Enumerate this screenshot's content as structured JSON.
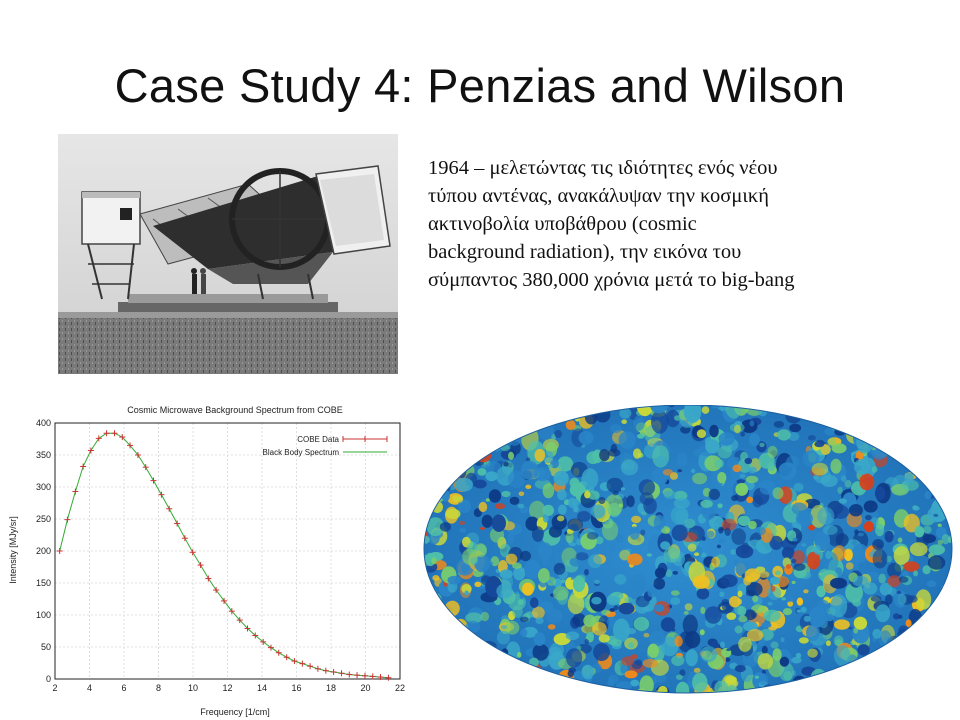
{
  "slide": {
    "title": "Case Study 4: Penzias and Wilson",
    "body_lines": [
      "1964 – μελετώντας τις ιδιότητες ενός νέου",
      "τύπου αντένας, ανακάλυψαν  την  κοσμική",
      "ακτινοβολία  υποβάθρου (cosmic",
      "background radiation), την εικόνα του",
      "σύμπαντος 380,000 χρόνια μετά το big-bang"
    ]
  },
  "photo": {
    "icon": "horn-antenna-photo"
  },
  "skymap": {
    "icon": "cmb-sky-map"
  },
  "chart_data": {
    "type": "line",
    "title": "Cosmic Microwave Background Spectrum from COBE",
    "xlabel": "Frequency [1/cm]",
    "ylabel": "Intensity [MJy/sr]",
    "xlim": [
      2,
      22
    ],
    "ylim": [
      0,
      400
    ],
    "xticks": [
      2,
      4,
      6,
      8,
      10,
      12,
      14,
      16,
      18,
      20,
      22
    ],
    "yticks": [
      0,
      50,
      100,
      150,
      200,
      250,
      300,
      350,
      400
    ],
    "legend_position": "top-right",
    "grid": true,
    "series": [
      {
        "name": "COBE Data",
        "style": "points-with-errorbars",
        "color": "#cc3333",
        "x": [
          2.27,
          2.72,
          3.18,
          3.63,
          4.08,
          4.54,
          4.99,
          5.45,
          5.9,
          6.35,
          6.81,
          7.26,
          7.71,
          8.17,
          8.62,
          9.08,
          9.53,
          9.98,
          10.44,
          10.89,
          11.34,
          11.8,
          12.25,
          12.71,
          13.16,
          13.61,
          14.07,
          14.52,
          14.97,
          15.43,
          15.88,
          16.34,
          16.79,
          17.24,
          17.7,
          18.15,
          18.61,
          19.06,
          19.51,
          19.97,
          20.42,
          20.87,
          21.33
        ],
        "y": [
          200,
          249,
          293,
          332,
          357,
          376,
          384,
          384,
          378,
          365,
          350,
          331,
          310,
          288,
          266,
          243,
          220,
          198,
          178,
          157,
          139,
          122,
          106,
          92,
          79,
          68,
          58,
          49,
          41,
          34,
          28,
          24,
          20,
          16,
          13,
          11,
          9,
          7,
          6,
          5,
          4,
          3,
          2
        ]
      },
      {
        "name": "Black Body Spectrum",
        "style": "line",
        "color": "#33aa33",
        "x": [
          2.27,
          2.72,
          3.18,
          3.63,
          4.08,
          4.54,
          4.99,
          5.45,
          5.9,
          6.35,
          6.81,
          7.26,
          7.71,
          8.17,
          8.62,
          9.08,
          9.53,
          9.98,
          10.44,
          10.89,
          11.34,
          11.8,
          12.25,
          12.71,
          13.16,
          13.61,
          14.07,
          14.52,
          14.97,
          15.43,
          15.88,
          16.34,
          16.79,
          17.24,
          17.7,
          18.15,
          18.61,
          19.06,
          19.51,
          19.97,
          20.42,
          20.87,
          21.33
        ],
        "y": [
          200,
          249,
          293,
          332,
          357,
          376,
          384,
          384,
          378,
          365,
          350,
          331,
          310,
          288,
          266,
          243,
          220,
          198,
          178,
          157,
          139,
          122,
          106,
          92,
          79,
          68,
          58,
          49,
          41,
          34,
          28,
          24,
          20,
          16,
          13,
          11,
          9,
          7,
          6,
          5,
          4,
          3,
          2
        ]
      }
    ]
  }
}
